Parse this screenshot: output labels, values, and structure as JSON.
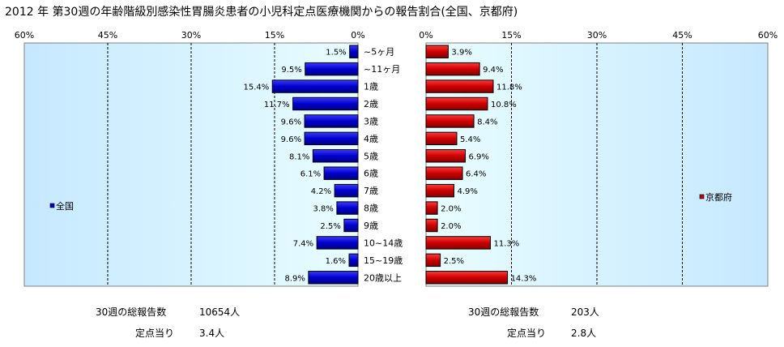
{
  "chart_data": {
    "title": "2012 年 第30週の年齢階級別感染性胃腸炎患者の小児科定点医療機関からの報告割合(全国、京都府)",
    "type": "bar",
    "orientation": "horizontal-butterfly",
    "categories": [
      "~5ヶ月",
      "~11ヶ月",
      "1歳",
      "2歳",
      "3歳",
      "4歳",
      "5歳",
      "6歳",
      "7歳",
      "8歳",
      "9歳",
      "10~14歳",
      "15~19歳",
      "20歳以上"
    ],
    "xlim": [
      0,
      60
    ],
    "left_ticks": [
      "60%",
      "45%",
      "30%",
      "15%",
      "0%"
    ],
    "right_ticks": [
      "0%",
      "15%",
      "30%",
      "45%",
      "60%"
    ],
    "grid": true,
    "series": [
      {
        "name": "全国",
        "side": "left",
        "color": "#0000cc",
        "values": [
          1.5,
          9.5,
          15.4,
          11.7,
          9.6,
          9.6,
          8.1,
          6.1,
          4.2,
          3.8,
          2.5,
          7.4,
          1.6,
          8.9
        ],
        "labels": [
          "1.5%",
          "9.5%",
          "15.4%",
          "11.7%",
          "9.6%",
          "9.6%",
          "8.1%",
          "6.1%",
          "4.2%",
          "3.8%",
          "2.5%",
          "7.4%",
          "1.6%",
          "8.9%"
        ]
      },
      {
        "name": "京都府",
        "side": "right",
        "color": "#cc0000",
        "values": [
          3.9,
          9.4,
          11.8,
          10.8,
          8.4,
          5.4,
          6.9,
          6.4,
          4.9,
          2.0,
          2.0,
          11.3,
          2.5,
          14.3
        ],
        "labels": [
          "3.9%",
          "9.4%",
          "11.8%",
          "10.8%",
          "8.4%",
          "5.4%",
          "6.9%",
          "6.4%",
          "4.9%",
          "2.0%",
          "2.0%",
          "11.3%",
          "2.5%",
          "14.3%"
        ]
      }
    ],
    "colors": {
      "plot_fill": "#c4f7ff",
      "plot_fill_inner": "#e4fbff",
      "grid": "#000000"
    }
  },
  "footer": {
    "left": {
      "total_label": "30週の総報告数",
      "total_value": "10654人",
      "per_label": "定点当り",
      "per_value": "3.4人"
    },
    "right": {
      "total_label": "30週の総報告数",
      "total_value": "203人",
      "per_label": "定点当り",
      "per_value": "2.8人"
    }
  }
}
